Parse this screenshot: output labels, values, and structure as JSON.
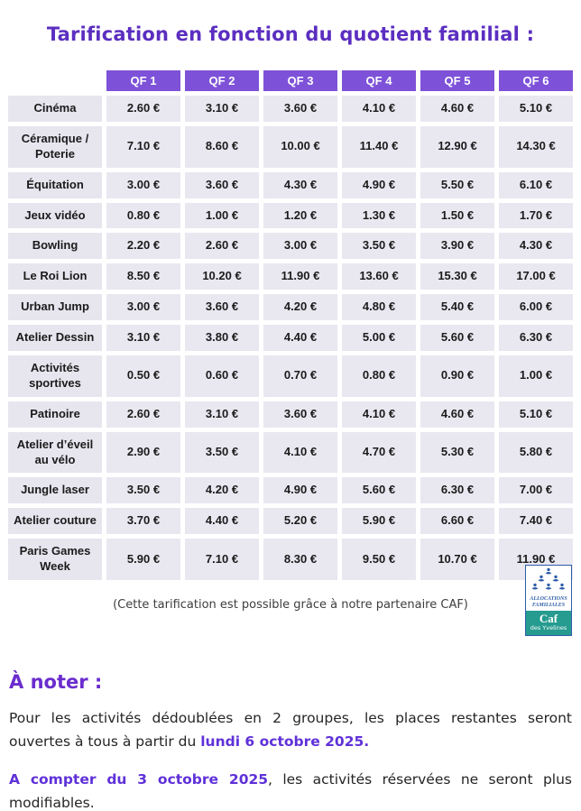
{
  "title": "Tarification en fonction du quotient familial :",
  "table": {
    "columns": [
      "QF 1",
      "QF 2",
      "QF 3",
      "QF 4",
      "QF 5",
      "QF 6"
    ],
    "rows": [
      {
        "label": "Cinéma",
        "values": [
          "2.60 €",
          "3.10 €",
          "3.60 €",
          "4.10 €",
          "4.60 €",
          "5.10 €"
        ]
      },
      {
        "label": "Céramique / Poterie",
        "values": [
          "7.10 €",
          "8.60 €",
          "10.00 €",
          "11.40 €",
          "12.90 €",
          "14.30 €"
        ]
      },
      {
        "label": "Équitation",
        "values": [
          "3.00 €",
          "3.60 €",
          "4.30 €",
          "4.90 €",
          "5.50 €",
          "6.10 €"
        ]
      },
      {
        "label": "Jeux vidéo",
        "values": [
          "0.80 €",
          "1.00 €",
          "1.20 €",
          "1.30 €",
          "1.50 €",
          "1.70 €"
        ]
      },
      {
        "label": "Bowling",
        "values": [
          "2.20 €",
          "2.60 €",
          "3.00 €",
          "3.50 €",
          "3.90 €",
          "4.30 €"
        ]
      },
      {
        "label": "Le Roi Lion",
        "values": [
          "8.50 €",
          "10.20 €",
          "11.90 €",
          "13.60 €",
          "15.30 €",
          "17.00 €"
        ]
      },
      {
        "label": "Urban Jump",
        "values": [
          "3.00 €",
          "3.60 €",
          "4.20 €",
          "4.80 €",
          "5.40 €",
          "6.00 €"
        ]
      },
      {
        "label": "Atelier Dessin",
        "values": [
          "3.10 €",
          "3.80 €",
          "4.40 €",
          "5.00 €",
          "5.60 €",
          "6.30 €"
        ]
      },
      {
        "label": "Activités sportives",
        "values": [
          "0.50 €",
          "0.60 €",
          "0.70 €",
          "0.80 €",
          "0.90 €",
          "1.00 €"
        ]
      },
      {
        "label": "Patinoire",
        "values": [
          "2.60 €",
          "3.10 €",
          "3.60 €",
          "4.10 €",
          "4.60 €",
          "5.10 €"
        ]
      },
      {
        "label": "Atelier d’éveil au vélo",
        "values": [
          "2.90 €",
          "3.50 €",
          "4.10 €",
          "4.70 €",
          "5.30 €",
          "5.80 €"
        ]
      },
      {
        "label": "Jungle laser",
        "values": [
          "3.50 €",
          "4.20 €",
          "4.90 €",
          "5.60 €",
          "6.30 €",
          "7.00 €"
        ]
      },
      {
        "label": "Atelier couture",
        "values": [
          "3.70 €",
          "4.40 €",
          "5.20 €",
          "5.90 €",
          "6.60 €",
          "7.40 €"
        ]
      },
      {
        "label": "Paris Games Week",
        "values": [
          "5.90 €",
          "7.10 €",
          "8.30 €",
          "9.50 €",
          "10.70 €",
          "11.90 €"
        ]
      }
    ]
  },
  "caption": "(Cette tarification est possible grâce à notre partenaire CAF)",
  "logo": {
    "line1": "ALLOCATIONS",
    "line2": "FAMILIALES",
    "name": "Caf",
    "region": "des Yvelines"
  },
  "notes": {
    "heading": "À noter :",
    "p1_normal": "Pour les activités dédoublées en 2 groupes, les places restantes seront ouvertes à tous à partir du ",
    "p1_bold": "lundi 6 octobre 2025.",
    "p2_bold": "A compter du 3 octobre 2025",
    "p2_normal": ", les activités réservées ne seront plus modifiables."
  },
  "colors": {
    "title_purple": "#5b2ec0",
    "heading_purple": "#6a2cce",
    "inline_bold_purple": "#5f31d8",
    "header_cell_purple": "#7d52d8",
    "cell_background": "#e9e7f0",
    "logo_blue": "#2d5da9",
    "logo_teal": "#269b8f"
  }
}
